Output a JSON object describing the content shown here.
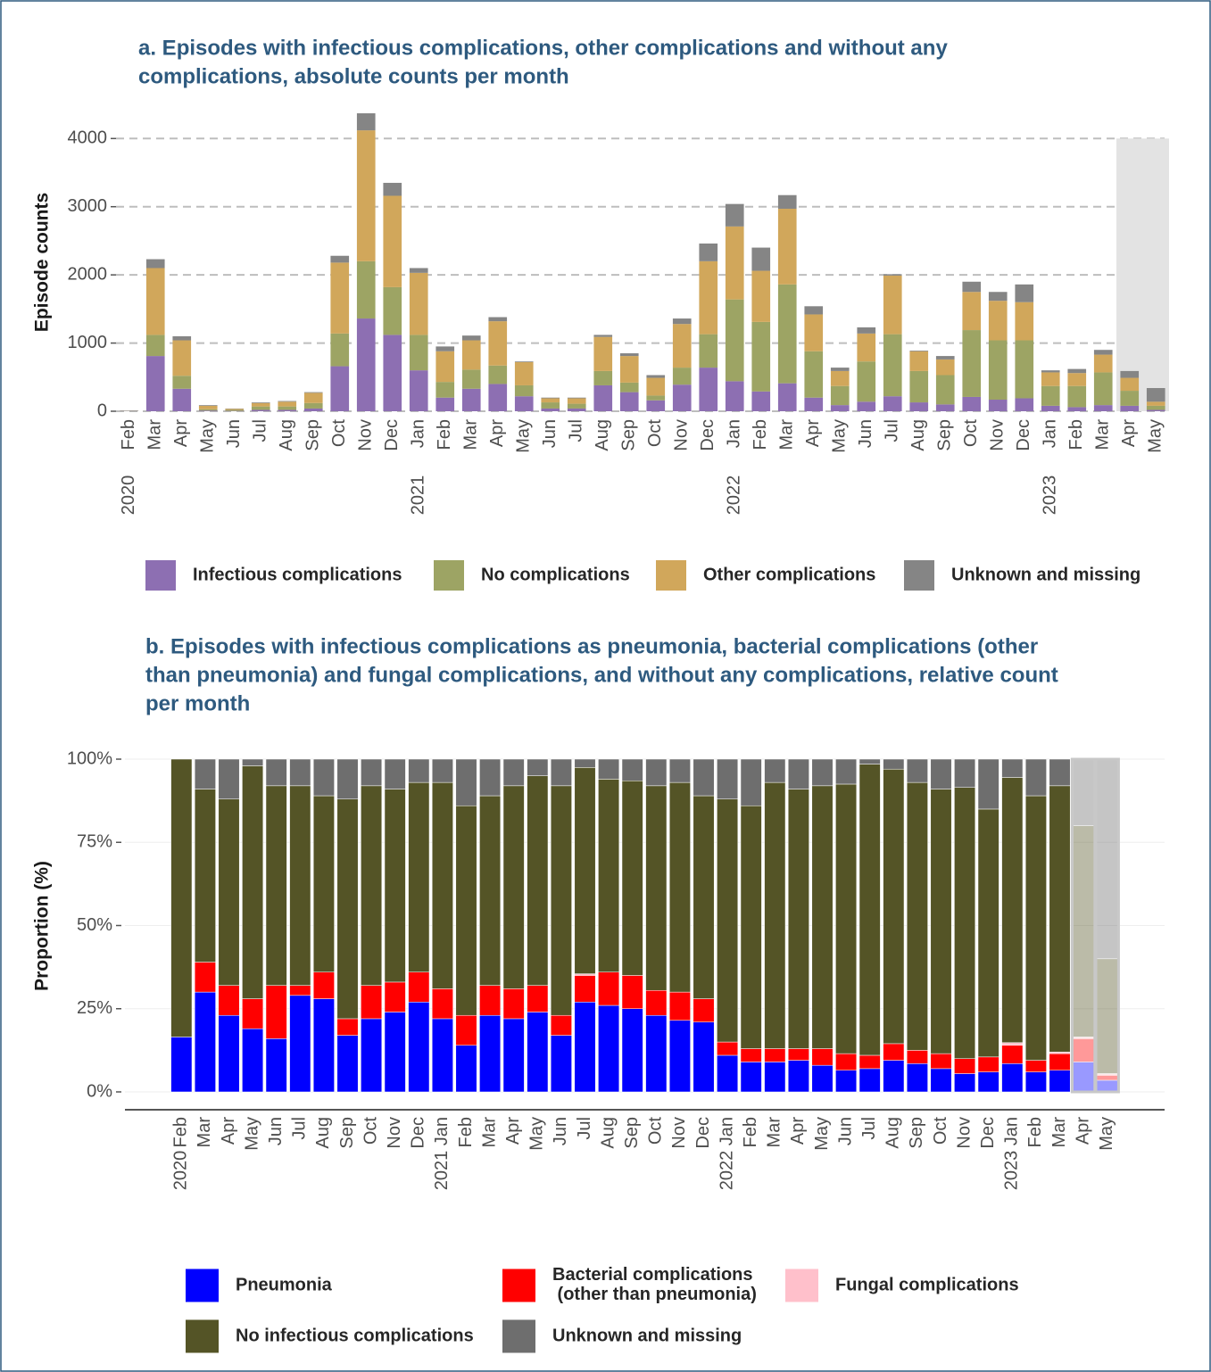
{
  "chart_data": [
    {
      "type": "stacked-bar",
      "title": [
        "a. Episodes with infectious complications, other complications and without any",
        "complications, absolute counts per month"
      ],
      "y_label": "Episode counts",
      "categories": [
        "Feb",
        "Mar",
        "Apr",
        "May",
        "Jun",
        "Jul",
        "Aug",
        "Sep",
        "Oct",
        "Nov",
        "Dec",
        "Jan",
        "Feb",
        "Mar",
        "Apr",
        "May",
        "Jun",
        "Jul",
        "Aug",
        "Sep",
        "Oct",
        "Nov",
        "Dec",
        "Jan",
        "Feb",
        "Mar",
        "Apr",
        "May",
        "Jun",
        "Jul",
        "Aug",
        "Sep",
        "Oct",
        "Nov",
        "Dec",
        "Jan",
        "Feb",
        "Mar",
        "Apr",
        "May"
      ],
      "year_labels": [
        "2020",
        null,
        null,
        null,
        null,
        null,
        null,
        null,
        null,
        null,
        null,
        "2021",
        null,
        null,
        null,
        null,
        null,
        null,
        null,
        null,
        null,
        null,
        null,
        "2022",
        null,
        null,
        null,
        null,
        null,
        null,
        null,
        null,
        null,
        null,
        null,
        "2023",
        null,
        null,
        null,
        null
      ],
      "ylim": [
        0,
        4370
      ],
      "yticks": [
        0,
        1000,
        2000,
        3000,
        4000
      ],
      "grid": true,
      "highlight": {
        "categories": [
          38,
          39
        ],
        "top": 4000
      },
      "series": [
        {
          "name": "Infectious complications",
          "color": "#8d6fb2",
          "values": [
            5,
            810,
            330,
            10,
            5,
            20,
            20,
            40,
            660,
            1360,
            1120,
            600,
            200,
            330,
            400,
            220,
            40,
            40,
            380,
            280,
            160,
            390,
            640,
            440,
            290,
            410,
            200,
            90,
            140,
            220,
            130,
            100,
            210,
            170,
            190,
            80,
            60,
            90,
            80,
            20
          ]
        },
        {
          "name": "No complications",
          "color": "#9da464",
          "values": [
            5,
            310,
            190,
            20,
            15,
            50,
            50,
            80,
            480,
            840,
            700,
            520,
            230,
            280,
            270,
            160,
            90,
            70,
            210,
            140,
            70,
            250,
            490,
            1200,
            1020,
            1450,
            680,
            280,
            590,
            910,
            460,
            430,
            980,
            870,
            850,
            290,
            310,
            480,
            220,
            60
          ]
        },
        {
          "name": "Other complications",
          "color": "#d1a75b",
          "values": [
            0,
            980,
            520,
            50,
            15,
            50,
            70,
            150,
            1040,
            1920,
            1340,
            910,
            450,
            430,
            650,
            340,
            60,
            80,
            500,
            390,
            260,
            640,
            1070,
            1070,
            750,
            1110,
            540,
            220,
            410,
            860,
            290,
            230,
            560,
            580,
            560,
            200,
            190,
            260,
            190,
            60
          ]
        },
        {
          "name": "Unknown and missing",
          "color": "#858585",
          "values": [
            0,
            130,
            60,
            10,
            5,
            10,
            10,
            10,
            100,
            250,
            190,
            70,
            70,
            70,
            60,
            10,
            10,
            10,
            30,
            40,
            40,
            80,
            260,
            330,
            340,
            200,
            120,
            50,
            90,
            20,
            10,
            50,
            150,
            130,
            260,
            30,
            60,
            70,
            100,
            200
          ]
        }
      ]
    },
    {
      "type": "stacked-bar",
      "title": [
        "b. Episodes with infectious complications as pneumonia, bacterial complications (other",
        "than pneumonia) and fungal complications, and without any complications, relative count",
        "per month"
      ],
      "y_label": "Proportion (%)",
      "categories": [
        "Feb",
        "Mar",
        "Apr",
        "May",
        "Jun",
        "Jul",
        "Aug",
        "Sep",
        "Oct",
        "Nov",
        "Dec",
        "Jan",
        "Feb",
        "Mar",
        "Apr",
        "May",
        "Jun",
        "Jul",
        "Aug",
        "Sep",
        "Oct",
        "Nov",
        "Dec",
        "Jan",
        "Feb",
        "Mar",
        "Apr",
        "May",
        "Jun",
        "Jul",
        "Aug",
        "Sep",
        "Oct",
        "Nov",
        "Dec",
        "Jan",
        "Feb",
        "Mar",
        "Apr",
        "May"
      ],
      "year_labels": [
        "2020",
        null,
        null,
        null,
        null,
        null,
        null,
        null,
        null,
        null,
        null,
        "2021",
        null,
        null,
        null,
        null,
        null,
        null,
        null,
        null,
        null,
        null,
        null,
        "2022",
        null,
        null,
        null,
        null,
        null,
        null,
        null,
        null,
        null,
        null,
        null,
        "2023",
        null,
        null,
        null,
        null
      ],
      "ylim": [
        0,
        100
      ],
      "yticks": [
        {
          "value": 0,
          "label": "0%"
        },
        {
          "value": 25,
          "label": "25%"
        },
        {
          "value": 50,
          "label": "50%"
        },
        {
          "value": 75,
          "label": "75%"
        },
        {
          "value": 100,
          "label": "100%"
        }
      ],
      "grid": true,
      "highlight": {
        "categories": [
          38,
          39
        ]
      },
      "series": [
        {
          "name": "Pneumonia",
          "color": "#0000ff",
          "values": [
            16.5,
            30,
            23,
            19,
            16,
            29,
            28,
            17,
            22,
            24,
            27,
            22,
            14,
            23,
            22,
            24,
            17,
            27,
            26,
            25,
            23,
            21.5,
            21,
            11,
            9,
            9,
            9.5,
            8,
            6.5,
            7,
            9.5,
            8.5,
            7,
            5.5,
            6,
            8.5,
            6,
            6.5,
            9,
            3.5
          ]
        },
        {
          "name": "Bacterial complications\n (other than pneumonia)",
          "color": "#ff0000",
          "values": [
            0,
            9,
            9,
            9,
            16,
            3,
            8,
            5,
            10,
            9,
            9,
            9,
            9,
            9,
            9,
            8,
            6,
            8,
            10,
            10,
            7.5,
            8.5,
            7,
            4,
            4,
            4,
            3.5,
            5,
            5,
            4,
            5,
            4,
            4.5,
            4.5,
            4.5,
            5.5,
            3.5,
            5,
            7,
            1.5
          ]
        },
        {
          "name": "Fungal complications",
          "color": "#ffc0cb",
          "values": [
            0,
            0,
            0,
            0,
            0,
            0,
            0,
            0,
            0,
            0,
            0,
            0,
            0,
            0,
            0,
            0,
            0,
            0.5,
            0,
            0,
            0,
            0,
            0,
            0,
            0,
            0,
            0,
            0,
            0,
            0,
            0,
            0,
            0,
            0,
            0,
            0.8,
            0,
            0.5,
            0.5,
            0.5
          ]
        },
        {
          "name": "No infectious complications",
          "color": "#545426",
          "values": [
            83.5,
            52,
            56,
            70,
            60,
            60,
            53,
            66,
            60,
            58,
            57,
            62,
            63,
            57,
            61,
            63,
            69,
            62,
            58,
            58.5,
            61.5,
            63,
            61,
            73,
            73,
            80,
            78,
            79,
            81,
            87.5,
            82.5,
            80.5,
            79.5,
            81.5,
            74.5,
            79.7,
            79.5,
            80,
            63.5,
            34.5
          ]
        },
        {
          "name": "Unknown and missing",
          "color": "#6e6e6e",
          "values": [
            0,
            9,
            12,
            2,
            8,
            8,
            11,
            12,
            8,
            9,
            7,
            7,
            14,
            11,
            8,
            5,
            8,
            2.5,
            6,
            6.5,
            8,
            7,
            11,
            12,
            14,
            7,
            9,
            8,
            7.5,
            1.5,
            3,
            7,
            9,
            8.5,
            15,
            5.5,
            11,
            8,
            20,
            60
          ]
        }
      ]
    }
  ]
}
